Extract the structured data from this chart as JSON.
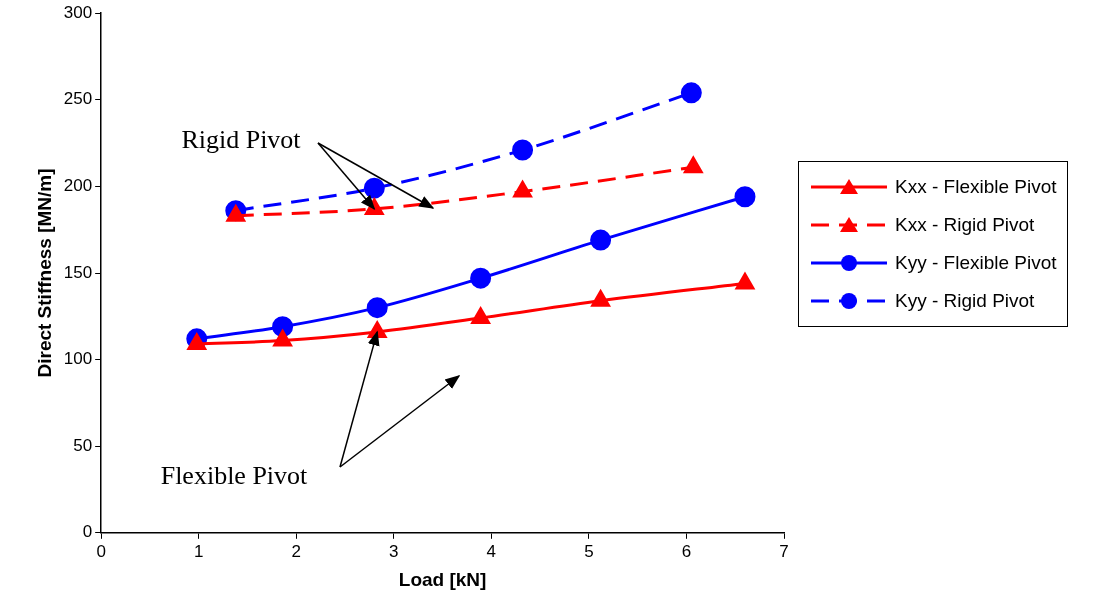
{
  "chart_data": {
    "type": "line",
    "xlabel": "Load [kN]",
    "ylabel": "Direct Stiffness [MN/m]",
    "xlim": [
      0,
      7
    ],
    "xticks": [
      0,
      1,
      2,
      3,
      4,
      5,
      6,
      7
    ],
    "ylim": [
      0,
      300
    ],
    "yticks": [
      0,
      50,
      100,
      150,
      200,
      250,
      300
    ],
    "grid": false,
    "legend": "right",
    "series": [
      {
        "name": "Kxx - Flexible Pivot",
        "color": "#ff0000",
        "marker": "triangle",
        "line_style": "solid",
        "x": [
          0.98,
          1.86,
          2.83,
          3.89,
          5.12,
          6.6
        ],
        "values": [
          109,
          111,
          116,
          124,
          134,
          144
        ]
      },
      {
        "name": "Kxx - Rigid Pivot",
        "color": "#ff0000",
        "marker": "triangle",
        "line_style": "dashed",
        "x": [
          1.38,
          2.8,
          4.32,
          6.07
        ],
        "values": [
          183,
          187,
          197,
          211
        ]
      },
      {
        "name": "Kyy - Flexible Pivot",
        "color": "#0000ff",
        "marker": "circle",
        "line_style": "solid",
        "x": [
          0.98,
          1.86,
          2.83,
          3.89,
          5.12,
          6.6
        ],
        "values": [
          112,
          119,
          130,
          147,
          169,
          194
        ]
      },
      {
        "name": "Kyy - Rigid Pivot",
        "color": "#0000ff",
        "marker": "circle",
        "line_style": "dashed",
        "x": [
          1.38,
          2.8,
          4.32,
          6.05
        ],
        "values": [
          186,
          199,
          221,
          254
        ]
      }
    ],
    "annotations": [
      {
        "text": "Rigid Pivot",
        "x": 2.8,
        "y": 187
      },
      {
        "text": "Flexible Pivot",
        "x": 2.83,
        "y": 116
      }
    ]
  }
}
